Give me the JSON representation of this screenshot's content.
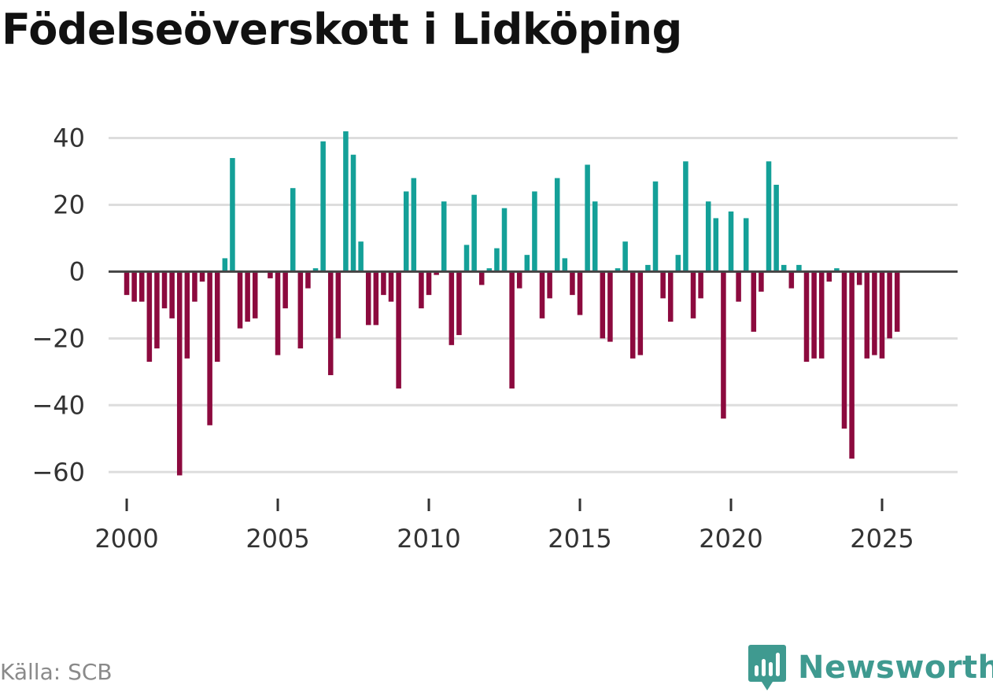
{
  "title": "Födelseöverskott i Lidköping",
  "source": "Källa: SCB",
  "brand": {
    "name": "Newsworthy",
    "icon": "newsworthy-bar-chart-logo-icon"
  },
  "colors": {
    "positive": "#14a098",
    "negative": "#8c0a3e",
    "grid": "#dddddd",
    "zero_line": "#444444",
    "brand": "#3f9a90"
  },
  "chart_data": {
    "type": "bar",
    "title": "Födelseöverskott i Lidköping",
    "xlabel": "",
    "ylabel": "",
    "granularity": "quarterly",
    "x_start": 2000.0,
    "x_step": 0.25,
    "xlim": [
      1999.4,
      2027.5
    ],
    "ylim": [
      -67,
      46
    ],
    "yticks": [
      40,
      20,
      0,
      -20,
      -40,
      -60
    ],
    "ytick_labels": [
      "40",
      "20",
      "0",
      "−20",
      "−40",
      "−60"
    ],
    "xticks": [
      2000,
      2005,
      2010,
      2015,
      2020,
      2025
    ],
    "xtick_labels": [
      "2000",
      "2005",
      "2010",
      "2015",
      "2020",
      "2025"
    ],
    "grid": true,
    "values": [
      -7,
      -9,
      -9,
      -27,
      -23,
      -11,
      -14,
      -61,
      -26,
      -9,
      -3,
      -46,
      -27,
      4,
      34,
      -17,
      -15,
      -14,
      0,
      -2,
      -25,
      -11,
      25,
      -23,
      -5,
      1,
      39,
      -31,
      -20,
      42,
      35,
      9,
      -16,
      -16,
      -7,
      -9,
      -35,
      24,
      28,
      -11,
      -7,
      -1,
      21,
      -22,
      -19,
      8,
      23,
      -4,
      1,
      7,
      19,
      -35,
      -5,
      5,
      24,
      -14,
      -8,
      28,
      4,
      -7,
      -13,
      32,
      21,
      -20,
      -21,
      1,
      9,
      -26,
      -25,
      2,
      27,
      -8,
      -15,
      5,
      33,
      -14,
      -8,
      21,
      16,
      -44,
      18,
      -9,
      16,
      -18,
      -6,
      33,
      26,
      2,
      -5,
      2,
      -27,
      -26,
      -26,
      -3,
      1,
      -47,
      -56,
      -4,
      -26,
      -25,
      -26,
      -20,
      -18
    ]
  }
}
